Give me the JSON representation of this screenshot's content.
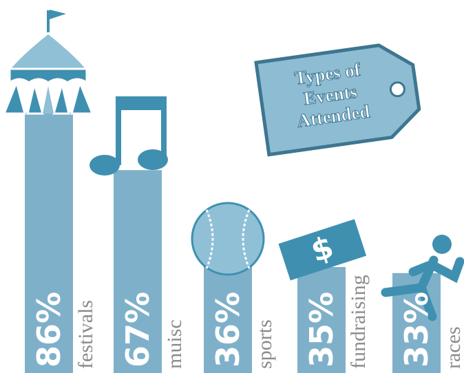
{
  "chart_data": {
    "type": "bar",
    "title": "Types of Events Attended",
    "categories": [
      "festivals",
      "muisc",
      "sports",
      "fundraising",
      "races"
    ],
    "values": [
      86,
      67,
      36,
      35,
      33
    ],
    "value_labels": [
      "86%",
      "67%",
      "36%",
      "35%",
      "33%"
    ],
    "color": "#7fb0c9"
  }
}
